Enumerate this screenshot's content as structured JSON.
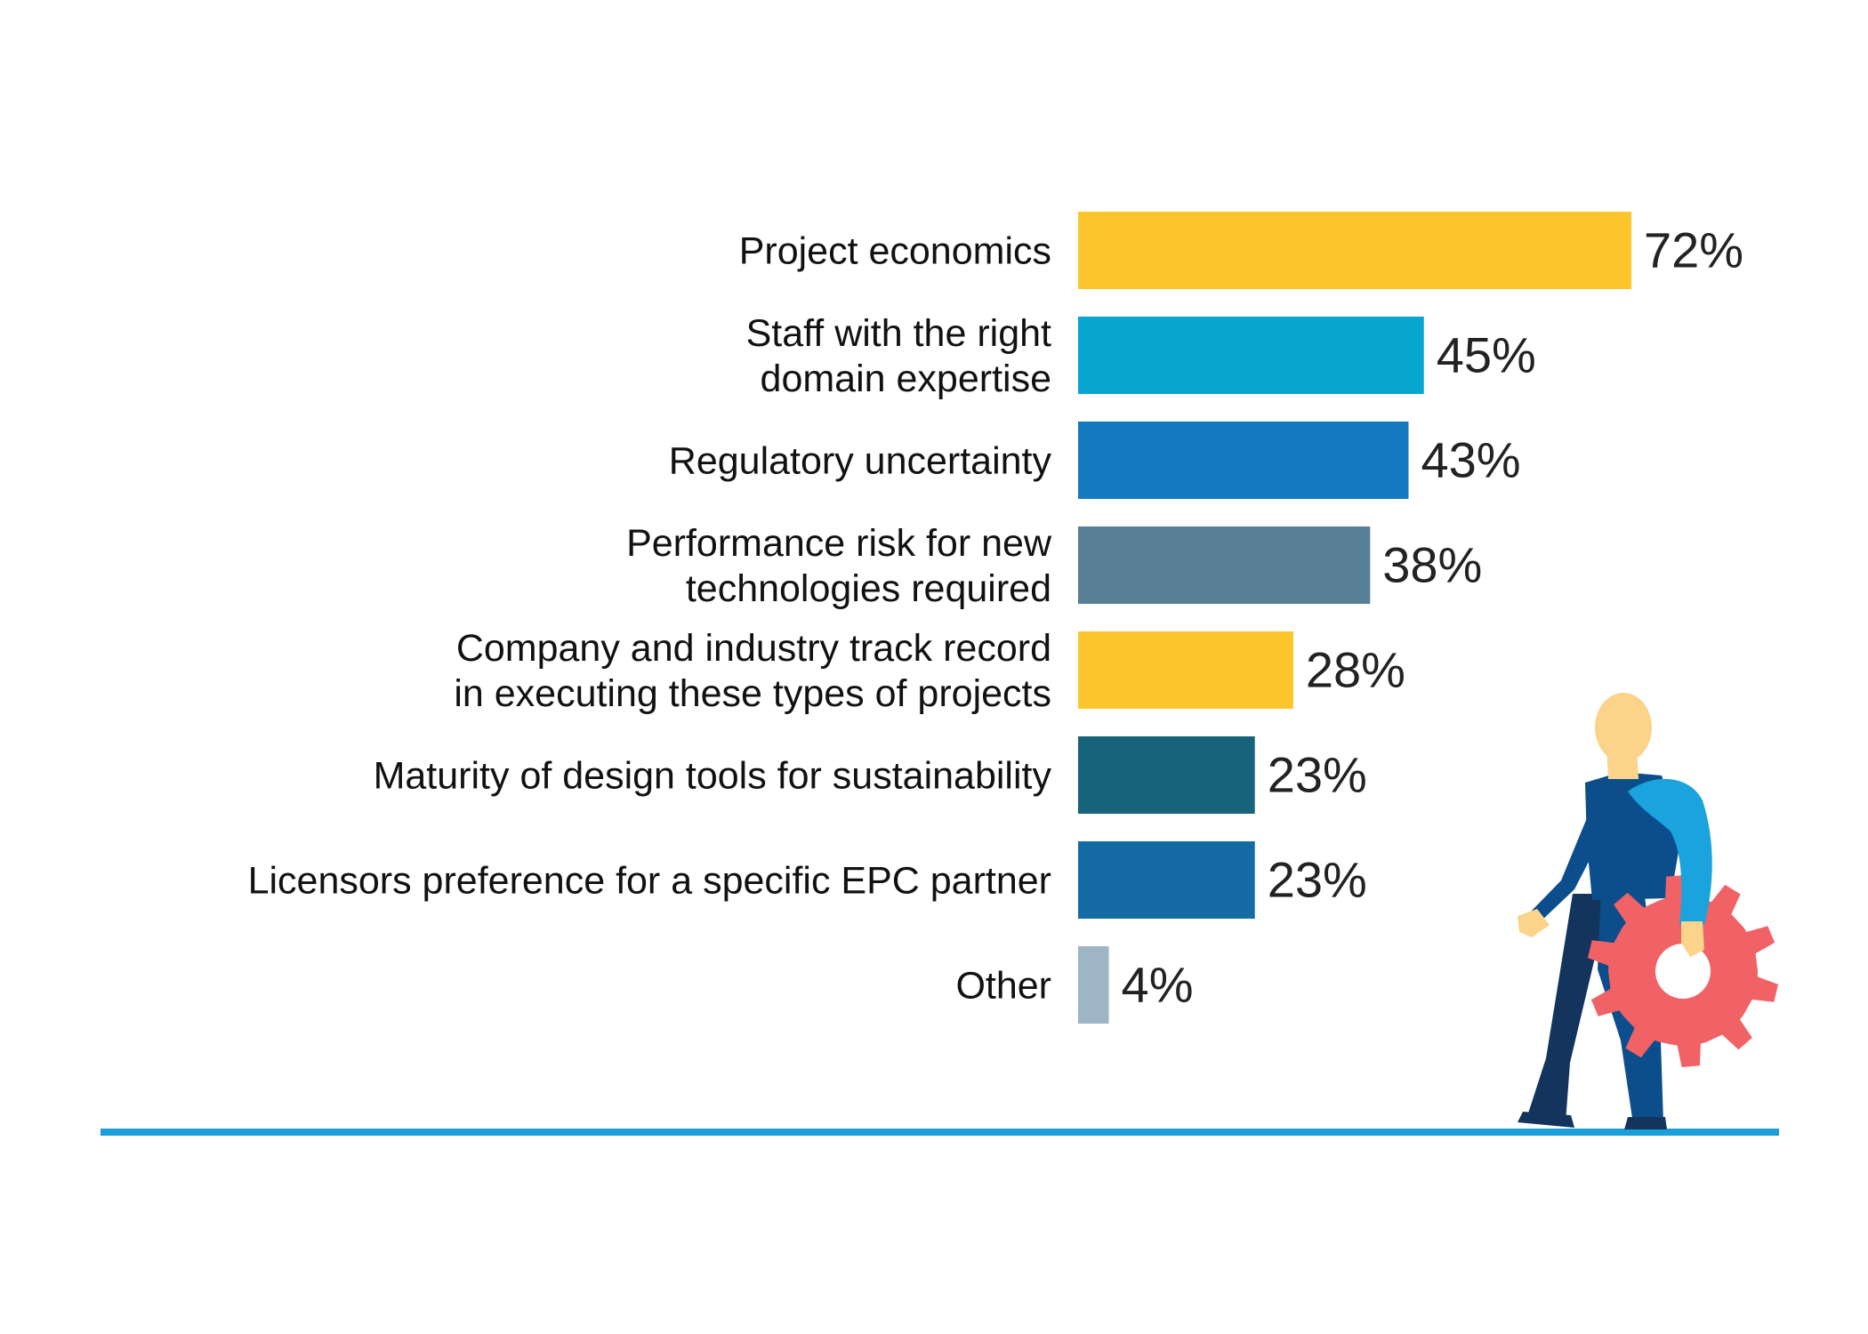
{
  "chart_data": {
    "type": "bar",
    "orientation": "horizontal",
    "categories": [
      "Project economics",
      "Staff with the right domain expertise",
      "Regulatory uncertainty",
      "Performance risk for new technologies required",
      "Company and industry track record in executing these types of projects",
      "Maturity of design tools for sustainability",
      "Licensors preference for a specific EPC partner",
      "Other"
    ],
    "category_lines": [
      [
        "Project economics"
      ],
      [
        "Staff with the right",
        "domain expertise"
      ],
      [
        "Regulatory uncertainty"
      ],
      [
        "Performance risk for new",
        "technologies required"
      ],
      [
        "Company and industry track record",
        "in executing these types of projects"
      ],
      [
        "Maturity of design tools for sustainability"
      ],
      [
        "Licensors preference for a specific EPC partner"
      ],
      [
        "Other"
      ]
    ],
    "values": [
      72,
      45,
      43,
      38,
      28,
      23,
      23,
      4
    ],
    "value_labels": [
      "72%",
      "45%",
      "43%",
      "38%",
      "28%",
      "23%",
      "23%",
      "4%"
    ],
    "colors": [
      "#fdc52c",
      "#06a6d1",
      "#1479bf",
      "#587f95",
      "#fdc52c",
      "#16637a",
      "#156ba3",
      "#9db5c5"
    ],
    "baseline_color": "#1a9fd8",
    "title": "",
    "xlabel": "",
    "ylabel": "",
    "xlim": [
      0,
      72
    ],
    "grid": false,
    "legend": "none"
  },
  "illustration": {
    "icon": "person-carrying-gear-icon",
    "colors": {
      "skin": "#fbd38a",
      "shirt": "#0c4e8c",
      "sleeve": "#1aa3dd",
      "trousers": "#13345c",
      "gear": "#f06265"
    }
  }
}
